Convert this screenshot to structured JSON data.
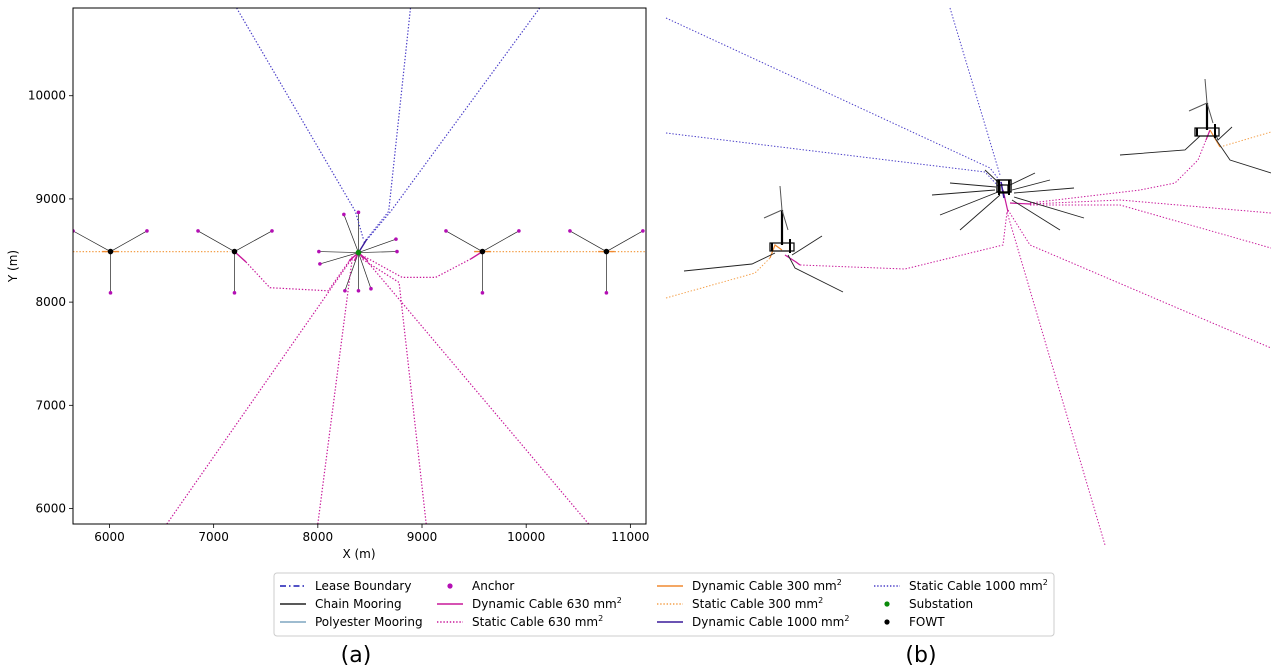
{
  "chart_data": [
    {
      "type": "line",
      "panel_label": "(a)",
      "xlabel": "X (m)",
      "ylabel": "Y (m)",
      "xlim": [
        5650,
        11150
      ],
      "ylim": [
        5850,
        10850
      ],
      "xticks": [
        6000,
        7000,
        8000,
        9000,
        10000,
        11000
      ],
      "yticks": [
        6000,
        7000,
        8000,
        9000,
        10000
      ],
      "grid": false,
      "substation": {
        "x": 8390,
        "y": 8480
      },
      "fowts": [
        {
          "x": 6010,
          "y": 8490
        },
        {
          "x": 7200,
          "y": 8490
        },
        {
          "x": 9580,
          "y": 8490
        },
        {
          "x": 10770,
          "y": 8490
        }
      ],
      "anchors": [
        [
          5650,
          8690
        ],
        [
          6360,
          8690
        ],
        [
          6010,
          8090
        ],
        [
          6850,
          8690
        ],
        [
          7560,
          8690
        ],
        [
          7200,
          8090
        ],
        [
          9230,
          8690
        ],
        [
          9930,
          8690
        ],
        [
          9580,
          8090
        ],
        [
          10420,
          8690
        ],
        [
          11120,
          8690
        ],
        [
          10770,
          8090
        ],
        [
          8250,
          8850
        ],
        [
          8390,
          8870
        ],
        [
          8750,
          8610
        ],
        [
          8760,
          8490
        ],
        [
          8010,
          8490
        ],
        [
          8020,
          8370
        ],
        [
          8260,
          8110
        ],
        [
          8390,
          8110
        ],
        [
          8510,
          8130
        ]
      ],
      "series": [
        {
          "name": "Static Cable 300 mm2",
          "color": "#f4a04a",
          "dash": "dotted",
          "lines": [
            [
              [
                5650,
                8490
              ],
              [
                7160,
                8490
              ]
            ],
            [
              [
                9620,
                8490
              ],
              [
                11150,
                8490
              ]
            ]
          ]
        },
        {
          "name": "Dynamic Cable 300 mm2",
          "color": "#f08a30",
          "dash": "solid",
          "lines": [
            [
              [
                5930,
                8490
              ],
              [
                6090,
                8490
              ]
            ],
            [
              [
                9500,
                8490
              ],
              [
                9660,
                8490
              ]
            ],
            [
              [
                10690,
                8490
              ],
              [
                10850,
                8490
              ]
            ]
          ]
        },
        {
          "name": "Static Cable 630 mm2",
          "color": "#c8189a",
          "dash": "dotted",
          "lines": [
            [
              [
                7310,
                8390
              ],
              [
                7540,
                8140
              ],
              [
                8100,
                8110
              ],
              [
                8330,
                8440
              ]
            ],
            [
              [
                9470,
                8420
              ],
              [
                9130,
                8240
              ],
              [
                8810,
                8240
              ],
              [
                8450,
                8440
              ]
            ],
            [
              [
                6550,
                5850
              ],
              [
                8340,
                8440
              ]
            ],
            [
              [
                8000,
                5850
              ],
              [
                8330,
                8420
              ]
            ],
            [
              [
                9040,
                5850
              ],
              [
                8780,
                8190
              ],
              [
                8420,
                8420
              ]
            ],
            [
              [
                10600,
                5850
              ],
              [
                8460,
                8410
              ]
            ]
          ]
        },
        {
          "name": "Dynamic Cable 630 mm2",
          "color": "#c8189a",
          "dash": "solid",
          "lines": [
            [
              [
                7200,
                8490
              ],
              [
                7310,
                8390
              ]
            ],
            [
              [
                9580,
                8490
              ],
              [
                9470,
                8420
              ]
            ],
            [
              [
                8390,
                8480
              ],
              [
                8300,
                8400
              ]
            ],
            [
              [
                8390,
                8480
              ],
              [
                8480,
                8400
              ]
            ],
            [
              [
                8390,
                8480
              ],
              [
                8440,
                8420
              ]
            ],
            [
              [
                8390,
                8480
              ],
              [
                8350,
                8400
              ]
            ]
          ]
        },
        {
          "name": "Static Cable 1000 mm2",
          "color": "#4a3ec8",
          "dash": "dotted",
          "lines": [
            [
              [
                7220,
                10850
              ],
              [
                8360,
                8880
              ],
              [
                8440,
                8600
              ]
            ],
            [
              [
                8890,
                10850
              ],
              [
                8680,
                8880
              ],
              [
                8430,
                8560
              ]
            ],
            [
              [
                10130,
                10850
              ],
              [
                8700,
                8880
              ],
              [
                8450,
                8580
              ]
            ]
          ]
        },
        {
          "name": "Dynamic Cable 1000 mm2",
          "color": "#3a1a9a",
          "dash": "solid",
          "lines": [
            [
              [
                8390,
                8480
              ],
              [
                8470,
                8610
              ]
            ]
          ]
        },
        {
          "name": "Chain Mooring",
          "color": "#222222",
          "dash": "solid",
          "lines": []
        }
      ]
    },
    {
      "type": "3d-render",
      "panel_label": "(b)"
    }
  ],
  "legend": {
    "placement": "bottom-center",
    "columns": [
      [
        {
          "label": "Lease Boundary",
          "marker": "line",
          "color": "#1a1ab4",
          "dash": "dashdot"
        },
        {
          "label": "Chain Mooring",
          "marker": "line",
          "color": "#222222",
          "dash": "solid"
        },
        {
          "label": "Polyester Mooring",
          "marker": "line",
          "color": "#7ea6c0",
          "dash": "solid"
        }
      ],
      [
        {
          "label": "Anchor",
          "marker": "dot",
          "color": "#b40fb4"
        },
        {
          "label": "Dynamic Cable 630 mm",
          "sup": "2",
          "marker": "line",
          "color": "#c8189a",
          "dash": "solid"
        },
        {
          "label": "Static Cable 630 mm",
          "sup": "2",
          "marker": "line",
          "color": "#c8189a",
          "dash": "dotted"
        }
      ],
      [
        {
          "label": "Dynamic Cable 300 mm",
          "sup": "2",
          "marker": "line",
          "color": "#f08a30",
          "dash": "solid"
        },
        {
          "label": "Static Cable 300 mm",
          "sup": "2",
          "marker": "line",
          "color": "#f4a04a",
          "dash": "dotted"
        },
        {
          "label": "Dynamic Cable 1000 mm",
          "sup": "2",
          "marker": "line",
          "color": "#3a1a9a",
          "dash": "solid"
        }
      ],
      [
        {
          "label": "Static Cable 1000 mm",
          "sup": "2",
          "marker": "line",
          "color": "#4a3ec8",
          "dash": "dotted"
        },
        {
          "label": "Substation",
          "marker": "dot",
          "color": "#0a8a0a"
        },
        {
          "label": "FOWT",
          "marker": "dot",
          "color": "#000000"
        }
      ]
    ]
  },
  "colors": {
    "chain": "#222222",
    "anchor": "#b40fb4",
    "substation": "#0a8a0a",
    "fowt": "#000000",
    "dyn630": "#c8189a",
    "stat630": "#c8189a",
    "dyn300": "#f08a30",
    "stat300": "#f4a04a",
    "dyn1000": "#3a1a9a",
    "stat1000": "#4a3ec8"
  }
}
